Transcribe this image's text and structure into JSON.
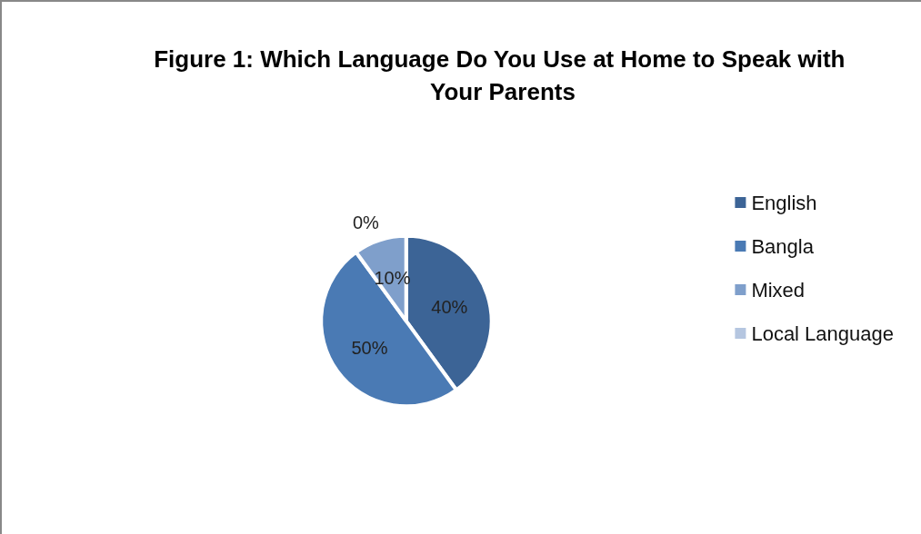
{
  "chart_data": {
    "type": "pie",
    "title": "Figure 1: Which Language Do You Use at Home to Speak with Your Parents",
    "categories": [
      "English",
      "Bangla",
      "Mixed",
      "Local Language"
    ],
    "values": [
      40,
      50,
      10,
      0
    ],
    "value_labels": [
      "40%",
      "50%",
      "10%",
      "0%"
    ],
    "colors": [
      "#3c6496",
      "#4a7ab4",
      "#7f9fcb",
      "#b5c6e0"
    ],
    "legend": "right"
  }
}
